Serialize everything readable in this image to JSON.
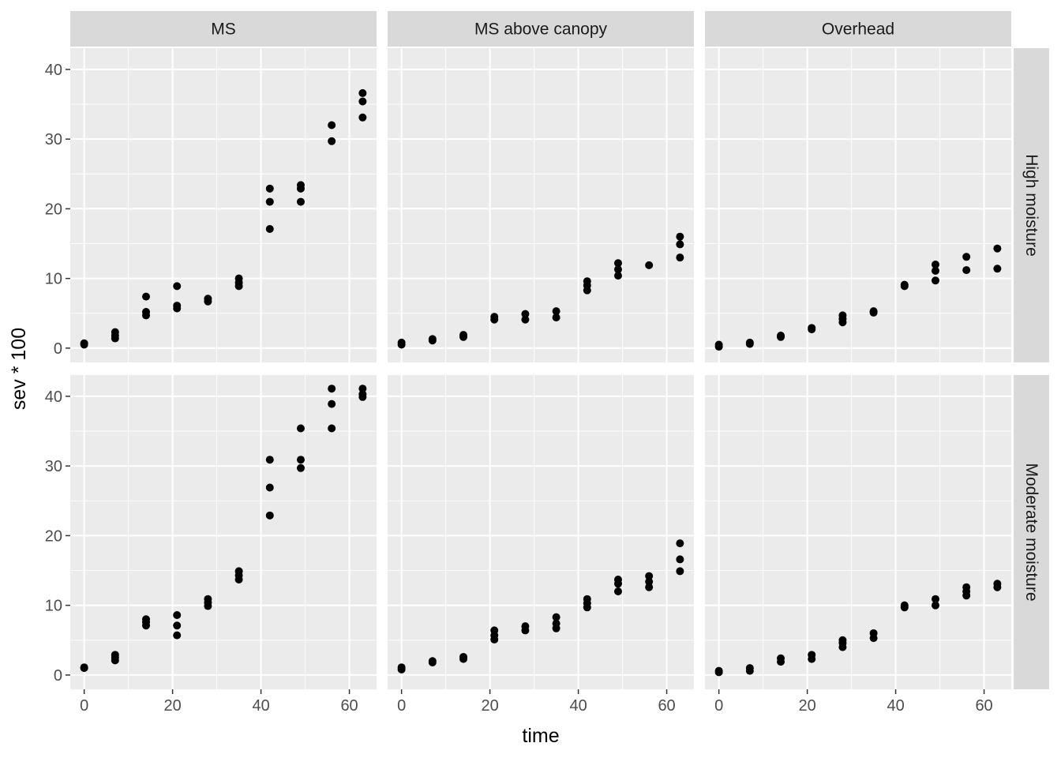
{
  "chart_data": {
    "type": "scatter",
    "title": "",
    "xlabel": "time",
    "ylabel": "sev * 100",
    "xlim": [
      -3.15,
      66.15
    ],
    "ylim": [
      -2.05,
      43.05
    ],
    "x_ticks": [
      0,
      20,
      40,
      60
    ],
    "y_ticks": [
      0,
      10,
      20,
      30,
      40
    ],
    "grid": true,
    "legend": "none",
    "colors": {
      "panel_background": "#ebebeb",
      "grid": "#ffffff",
      "strip_background": "#d9d9d9",
      "point": "#000000",
      "tick_text": "#4d4d4d"
    },
    "facet_cols": [
      "MS",
      "MS above canopy",
      "Overhead"
    ],
    "facet_rows": [
      "High moisture",
      "Moderate moisture"
    ],
    "panels": [
      {
        "row": "High moisture",
        "col": "MS",
        "points": [
          [
            0,
            0.5
          ],
          [
            0,
            0.7
          ],
          [
            7,
            1.4
          ],
          [
            7,
            1.8
          ],
          [
            7,
            2.3
          ],
          [
            14,
            4.7
          ],
          [
            14,
            5.2
          ],
          [
            14,
            7.4
          ],
          [
            21,
            5.7
          ],
          [
            21,
            6.1
          ],
          [
            21,
            8.9
          ],
          [
            28,
            6.7
          ],
          [
            28,
            7.1
          ],
          [
            35,
            8.9
          ],
          [
            35,
            9.4
          ],
          [
            35,
            10.0
          ],
          [
            42,
            17.1
          ],
          [
            42,
            21.0
          ],
          [
            42,
            22.9
          ],
          [
            49,
            21.0
          ],
          [
            49,
            22.9
          ],
          [
            49,
            23.4
          ],
          [
            56,
            29.7
          ],
          [
            56,
            32.0
          ],
          [
            63,
            33.1
          ],
          [
            63,
            35.4
          ],
          [
            63,
            36.6
          ]
        ]
      },
      {
        "row": "High moisture",
        "col": "MS above canopy",
        "points": [
          [
            0,
            0.5
          ],
          [
            0,
            0.8
          ],
          [
            7,
            1.1
          ],
          [
            7,
            1.3
          ],
          [
            14,
            1.6
          ],
          [
            14,
            1.9
          ],
          [
            21,
            4.1
          ],
          [
            21,
            4.5
          ],
          [
            28,
            4.1
          ],
          [
            28,
            4.9
          ],
          [
            35,
            4.4
          ],
          [
            35,
            5.3
          ],
          [
            42,
            8.3
          ],
          [
            42,
            9.0
          ],
          [
            42,
            9.6
          ],
          [
            49,
            10.4
          ],
          [
            49,
            11.3
          ],
          [
            49,
            12.2
          ],
          [
            56,
            11.9
          ],
          [
            63,
            13.0
          ],
          [
            63,
            14.9
          ],
          [
            63,
            16.0
          ]
        ]
      },
      {
        "row": "High moisture",
        "col": "Overhead",
        "points": [
          [
            0,
            0.2
          ],
          [
            0,
            0.5
          ],
          [
            7,
            0.6
          ],
          [
            7,
            0.8
          ],
          [
            14,
            1.6
          ],
          [
            14,
            1.8
          ],
          [
            21,
            2.7
          ],
          [
            21,
            2.9
          ],
          [
            28,
            3.7
          ],
          [
            28,
            4.2
          ],
          [
            28,
            4.7
          ],
          [
            35,
            5.1
          ],
          [
            35,
            5.3
          ],
          [
            42,
            8.9
          ],
          [
            42,
            9.1
          ],
          [
            49,
            9.7
          ],
          [
            49,
            11.1
          ],
          [
            49,
            12.0
          ],
          [
            56,
            11.2
          ],
          [
            56,
            13.1
          ],
          [
            63,
            11.4
          ],
          [
            63,
            14.3
          ]
        ]
      },
      {
        "row": "Moderate moisture",
        "col": "MS",
        "points": [
          [
            0,
            1.0
          ],
          [
            0,
            1.1
          ],
          [
            7,
            2.1
          ],
          [
            7,
            2.5
          ],
          [
            7,
            2.9
          ],
          [
            14,
            7.1
          ],
          [
            14,
            7.6
          ],
          [
            14,
            8.0
          ],
          [
            21,
            5.7
          ],
          [
            21,
            7.1
          ],
          [
            21,
            8.6
          ],
          [
            28,
            9.9
          ],
          [
            28,
            10.4
          ],
          [
            28,
            10.9
          ],
          [
            35,
            13.7
          ],
          [
            35,
            14.3
          ],
          [
            35,
            14.9
          ],
          [
            42,
            22.9
          ],
          [
            42,
            26.9
          ],
          [
            42,
            30.9
          ],
          [
            49,
            29.7
          ],
          [
            49,
            30.9
          ],
          [
            49,
            35.4
          ],
          [
            56,
            35.4
          ],
          [
            56,
            38.9
          ],
          [
            56,
            41.1
          ],
          [
            63,
            39.9
          ],
          [
            63,
            40.3
          ],
          [
            63,
            41.1
          ]
        ]
      },
      {
        "row": "Moderate moisture",
        "col": "MS above canopy",
        "points": [
          [
            0,
            0.8
          ],
          [
            0,
            1.1
          ],
          [
            7,
            1.8
          ],
          [
            7,
            2.0
          ],
          [
            14,
            2.3
          ],
          [
            14,
            2.6
          ],
          [
            21,
            5.1
          ],
          [
            21,
            5.7
          ],
          [
            21,
            6.4
          ],
          [
            28,
            6.4
          ],
          [
            28,
            7.0
          ],
          [
            35,
            6.7
          ],
          [
            35,
            7.4
          ],
          [
            35,
            8.3
          ],
          [
            42,
            9.7
          ],
          [
            42,
            10.3
          ],
          [
            42,
            10.9
          ],
          [
            49,
            12.0
          ],
          [
            49,
            13.1
          ],
          [
            49,
            13.7
          ],
          [
            56,
            12.6
          ],
          [
            56,
            13.4
          ],
          [
            56,
            14.2
          ],
          [
            63,
            14.9
          ],
          [
            63,
            16.6
          ],
          [
            63,
            18.9
          ]
        ]
      },
      {
        "row": "Moderate moisture",
        "col": "Overhead",
        "points": [
          [
            0,
            0.4
          ],
          [
            0,
            0.6
          ],
          [
            7,
            0.6
          ],
          [
            7,
            1.0
          ],
          [
            14,
            1.9
          ],
          [
            14,
            2.4
          ],
          [
            21,
            2.3
          ],
          [
            21,
            2.9
          ],
          [
            28,
            4.0
          ],
          [
            28,
            4.6
          ],
          [
            28,
            5.0
          ],
          [
            35,
            5.3
          ],
          [
            35,
            6.0
          ],
          [
            42,
            9.7
          ],
          [
            42,
            10.0
          ],
          [
            49,
            10.0
          ],
          [
            49,
            10.9
          ],
          [
            56,
            11.4
          ],
          [
            56,
            12.0
          ],
          [
            56,
            12.6
          ],
          [
            63,
            12.6
          ],
          [
            63,
            13.1
          ]
        ]
      }
    ]
  }
}
